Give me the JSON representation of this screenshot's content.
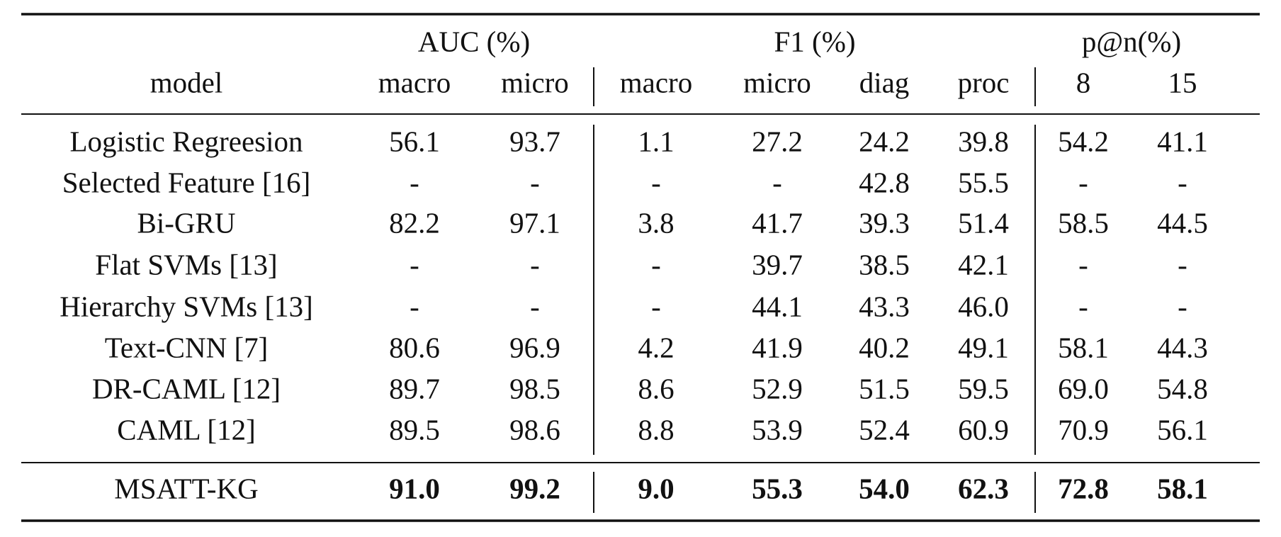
{
  "table": {
    "groups": [
      "AUC (%)",
      "F1 (%)",
      "p@n(%)"
    ],
    "columns": [
      "model",
      "macro",
      "micro",
      "macro",
      "micro",
      "diag",
      "proc",
      "8",
      "15"
    ],
    "rows": [
      [
        "Logistic Regreesion",
        "56.1",
        "93.7",
        "1.1",
        "27.2",
        "24.2",
        "39.8",
        "54.2",
        "41.1"
      ],
      [
        "Selected Feature [16]",
        "-",
        "-",
        "-",
        "-",
        "42.8",
        "55.5",
        "-",
        "-"
      ],
      [
        "Bi-GRU",
        "82.2",
        "97.1",
        "3.8",
        "41.7",
        "39.3",
        "51.4",
        "58.5",
        "44.5"
      ],
      [
        "Flat SVMs [13]",
        "-",
        "-",
        "-",
        "39.7",
        "38.5",
        "42.1",
        "-",
        "-"
      ],
      [
        "Hierarchy SVMs [13]",
        "-",
        "-",
        "-",
        "44.1",
        "43.3",
        "46.0",
        "-",
        "-"
      ],
      [
        "Text-CNN [7]",
        "80.6",
        "96.9",
        "4.2",
        "41.9",
        "40.2",
        "49.1",
        "58.1",
        "44.3"
      ],
      [
        "DR-CAML [12]",
        "89.7",
        "98.5",
        "8.6",
        "52.9",
        "51.5",
        "59.5",
        "69.0",
        "54.8"
      ],
      [
        "CAML [12]",
        "89.5",
        "98.6",
        "8.8",
        "53.9",
        "52.4",
        "60.9",
        "70.9",
        "56.1"
      ]
    ],
    "final_row": [
      "MSATT-KG",
      "91.0",
      "99.2",
      "9.0",
      "55.3",
      "54.0",
      "62.3",
      "72.8",
      "58.1"
    ]
  }
}
